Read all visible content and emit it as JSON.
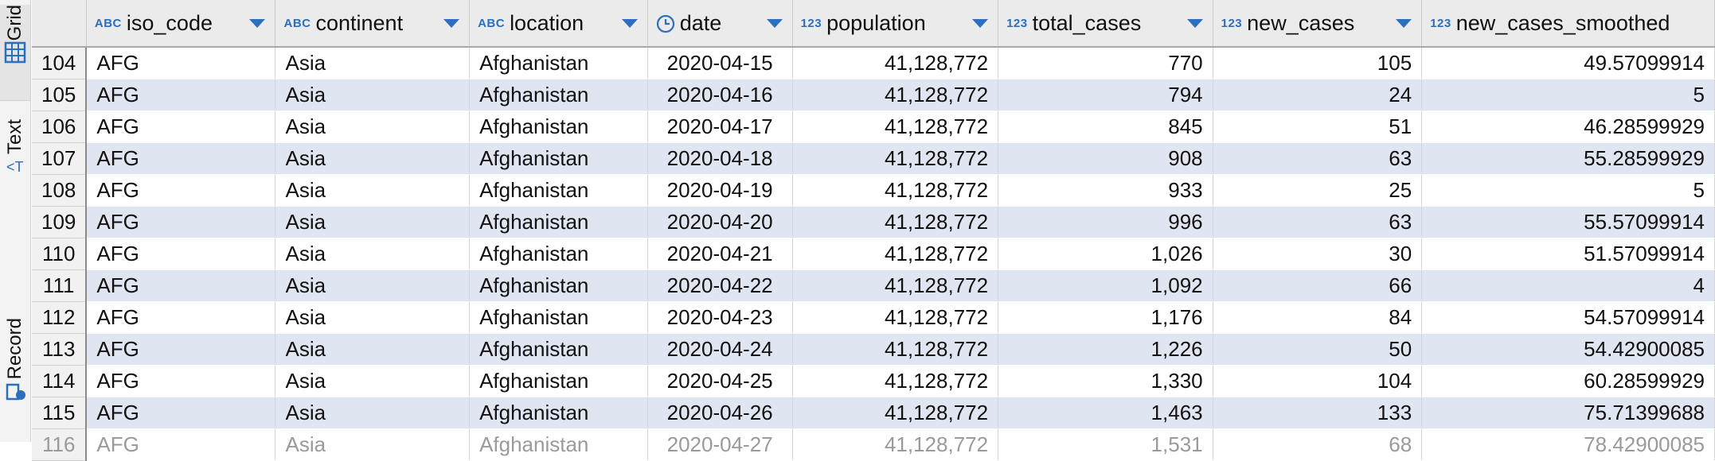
{
  "sidebar": {
    "tabs": [
      {
        "label": "Grid",
        "icon": "grid-icon"
      },
      {
        "label": "Text",
        "icon": "text-icon"
      },
      {
        "label": "Record",
        "icon": "record-icon"
      }
    ]
  },
  "grid": {
    "columns": [
      {
        "type": "ABC",
        "name": "iso_code"
      },
      {
        "type": "ABC",
        "name": "continent"
      },
      {
        "type": "ABC",
        "name": "location"
      },
      {
        "type": "clock",
        "name": "date"
      },
      {
        "type": "123",
        "name": "population"
      },
      {
        "type": "123",
        "name": "total_cases"
      },
      {
        "type": "123",
        "name": "new_cases"
      },
      {
        "type": "123",
        "name": "new_cases_smoothed"
      }
    ],
    "rows": [
      {
        "n": "104",
        "c": [
          "AFG",
          "Asia",
          "Afghanistan",
          "2020-04-15",
          "41,128,772",
          "770",
          "105",
          "49.57099914"
        ]
      },
      {
        "n": "105",
        "c": [
          "AFG",
          "Asia",
          "Afghanistan",
          "2020-04-16",
          "41,128,772",
          "794",
          "24",
          "5"
        ]
      },
      {
        "n": "106",
        "c": [
          "AFG",
          "Asia",
          "Afghanistan",
          "2020-04-17",
          "41,128,772",
          "845",
          "51",
          "46.28599929"
        ]
      },
      {
        "n": "107",
        "c": [
          "AFG",
          "Asia",
          "Afghanistan",
          "2020-04-18",
          "41,128,772",
          "908",
          "63",
          "55.28599929"
        ]
      },
      {
        "n": "108",
        "c": [
          "AFG",
          "Asia",
          "Afghanistan",
          "2020-04-19",
          "41,128,772",
          "933",
          "25",
          "5"
        ]
      },
      {
        "n": "109",
        "c": [
          "AFG",
          "Asia",
          "Afghanistan",
          "2020-04-20",
          "41,128,772",
          "996",
          "63",
          "55.57099914"
        ]
      },
      {
        "n": "110",
        "c": [
          "AFG",
          "Asia",
          "Afghanistan",
          "2020-04-21",
          "41,128,772",
          "1,026",
          "30",
          "51.57099914"
        ]
      },
      {
        "n": "111",
        "c": [
          "AFG",
          "Asia",
          "Afghanistan",
          "2020-04-22",
          "41,128,772",
          "1,092",
          "66",
          "4"
        ]
      },
      {
        "n": "112",
        "c": [
          "AFG",
          "Asia",
          "Afghanistan",
          "2020-04-23",
          "41,128,772",
          "1,176",
          "84",
          "54.57099914"
        ]
      },
      {
        "n": "113",
        "c": [
          "AFG",
          "Asia",
          "Afghanistan",
          "2020-04-24",
          "41,128,772",
          "1,226",
          "50",
          "54.42900085"
        ]
      },
      {
        "n": "114",
        "c": [
          "AFG",
          "Asia",
          "Afghanistan",
          "2020-04-25",
          "41,128,772",
          "1,330",
          "104",
          "60.28599929"
        ]
      },
      {
        "n": "115",
        "c": [
          "AFG",
          "Asia",
          "Afghanistan",
          "2020-04-26",
          "41,128,772",
          "1,463",
          "133",
          "75.71399688"
        ]
      },
      {
        "n": "116",
        "c": [
          "AFG",
          "Asia",
          "Afghanistan",
          "2020-04-27",
          "41,128,772",
          "1,531",
          "68",
          "78.42900085"
        ]
      }
    ]
  },
  "colors": {
    "header_bg": "#ebebeb",
    "stripe": "#dfe6f1",
    "type_badge": "#2b6fbd"
  }
}
